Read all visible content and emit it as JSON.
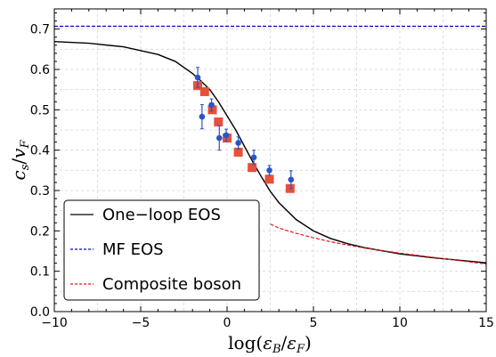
{
  "chart_data": {
    "type": "line",
    "xlabel": "log(εB/εF)",
    "ylabel": "cs/vF",
    "xlim": [
      -10,
      15
    ],
    "ylim": [
      0,
      0.75
    ],
    "x_ticks": [
      -10,
      -5,
      0,
      5,
      10,
      15
    ],
    "x_tick_labels": [
      "−10",
      "−5",
      "0",
      "5",
      "10",
      "15"
    ],
    "y_ticks": [
      0.0,
      0.1,
      0.2,
      0.3,
      0.4,
      0.5,
      0.6,
      0.7
    ],
    "y_tick_labels": [
      "0.0",
      "0.1",
      "0.2",
      "0.3",
      "0.4",
      "0.5",
      "0.6",
      "0.7"
    ],
    "grid": true,
    "legend_position": "bottom-left",
    "series": [
      {
        "name": "One−loop EOS",
        "kind": "line",
        "color": "#000000",
        "dash": "solid",
        "x": [
          -10,
          -8,
          -6,
          -4,
          -3,
          -2,
          -1.5,
          -1,
          -0.5,
          0,
          0.5,
          1,
          1.5,
          2,
          2.5,
          3,
          4,
          5,
          6,
          7,
          8,
          10,
          12,
          15
        ],
        "y": [
          0.669,
          0.665,
          0.656,
          0.637,
          0.62,
          0.59,
          0.571,
          0.55,
          0.52,
          0.485,
          0.45,
          0.41,
          0.37,
          0.333,
          0.298,
          0.27,
          0.228,
          0.2,
          0.181,
          0.168,
          0.158,
          0.143,
          0.133,
          0.121
        ]
      },
      {
        "name": "MF EOS",
        "kind": "line",
        "color": "#0000cc",
        "dash": "dashed",
        "x": [
          -10,
          15
        ],
        "y": [
          0.707,
          0.707
        ]
      },
      {
        "name": "Composite boson",
        "kind": "line",
        "color": "#e8151b",
        "dash": "dashed",
        "x": [
          2.5,
          3,
          4,
          5,
          6,
          7,
          8,
          10,
          12,
          15
        ],
        "y": [
          0.217,
          0.207,
          0.194,
          0.183,
          0.173,
          0.165,
          0.157,
          0.145,
          0.134,
          0.118
        ]
      },
      {
        "name": "",
        "kind": "scatter-errorbar",
        "color": "#2a55c8",
        "x": [
          -1.7,
          -1.45,
          -0.9,
          -0.45,
          -0.05,
          0.65,
          1.55,
          2.45,
          3.7
        ],
        "y": [
          0.58,
          0.483,
          0.512,
          0.43,
          0.437,
          0.418,
          0.382,
          0.35,
          0.327
        ],
        "err": [
          0.025,
          0.03,
          0.015,
          0.03,
          0.015,
          0.015,
          0.018,
          0.012,
          0.022
        ]
      },
      {
        "name": "",
        "kind": "scatter-square",
        "color": "#e8503a",
        "x": [
          -1.7,
          -1.3,
          -0.85,
          -0.5,
          0,
          0.65,
          1.45,
          2.45,
          3.65
        ],
        "y": [
          0.56,
          0.545,
          0.5,
          0.47,
          0.43,
          0.395,
          0.357,
          0.328,
          0.305
        ]
      }
    ]
  }
}
